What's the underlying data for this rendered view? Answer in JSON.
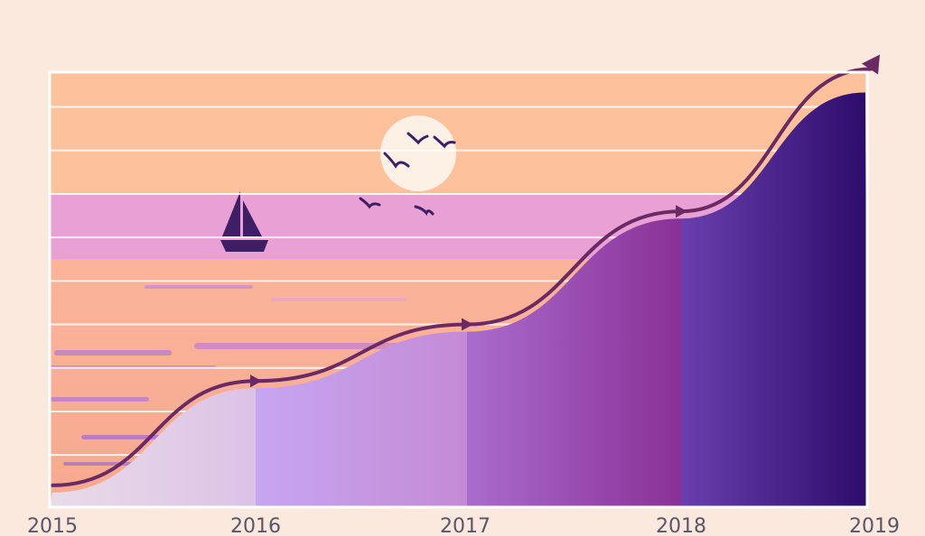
{
  "chart_data": {
    "type": "area",
    "title": "",
    "xlabel": "",
    "ylabel": "",
    "grid": true,
    "legend": "none",
    "x_ticks": [
      "2015",
      "2016",
      "2017",
      "2018",
      "2019"
    ],
    "x": [
      2015,
      2016,
      2017,
      2018,
      2019
    ],
    "y": [
      0.05,
      0.29,
      0.42,
      0.68,
      0.97
    ],
    "xlim": [
      2015,
      2019
    ],
    "ylim": [
      0,
      1
    ],
    "trend_arrow": true,
    "colors": {
      "page_background": "#fbe9de",
      "sky_top": "#fdc29c",
      "sea_band": "#e9a0d4",
      "sea": "#fbb08c",
      "sun": "#fdf1e6",
      "silhouette": "#3e1f66",
      "trend_line": "#6b2a63",
      "gridline": "#ffffff",
      "area_2015": "#e3c9e3",
      "area_2016": "#c9a2e8",
      "area_2017": "#a762c2",
      "area_2018": "#5e36a0",
      "area_2019": "#2f0f6e"
    },
    "decoration": [
      "sunset-sea-scene",
      "sun",
      "sailboat",
      "birds"
    ]
  }
}
